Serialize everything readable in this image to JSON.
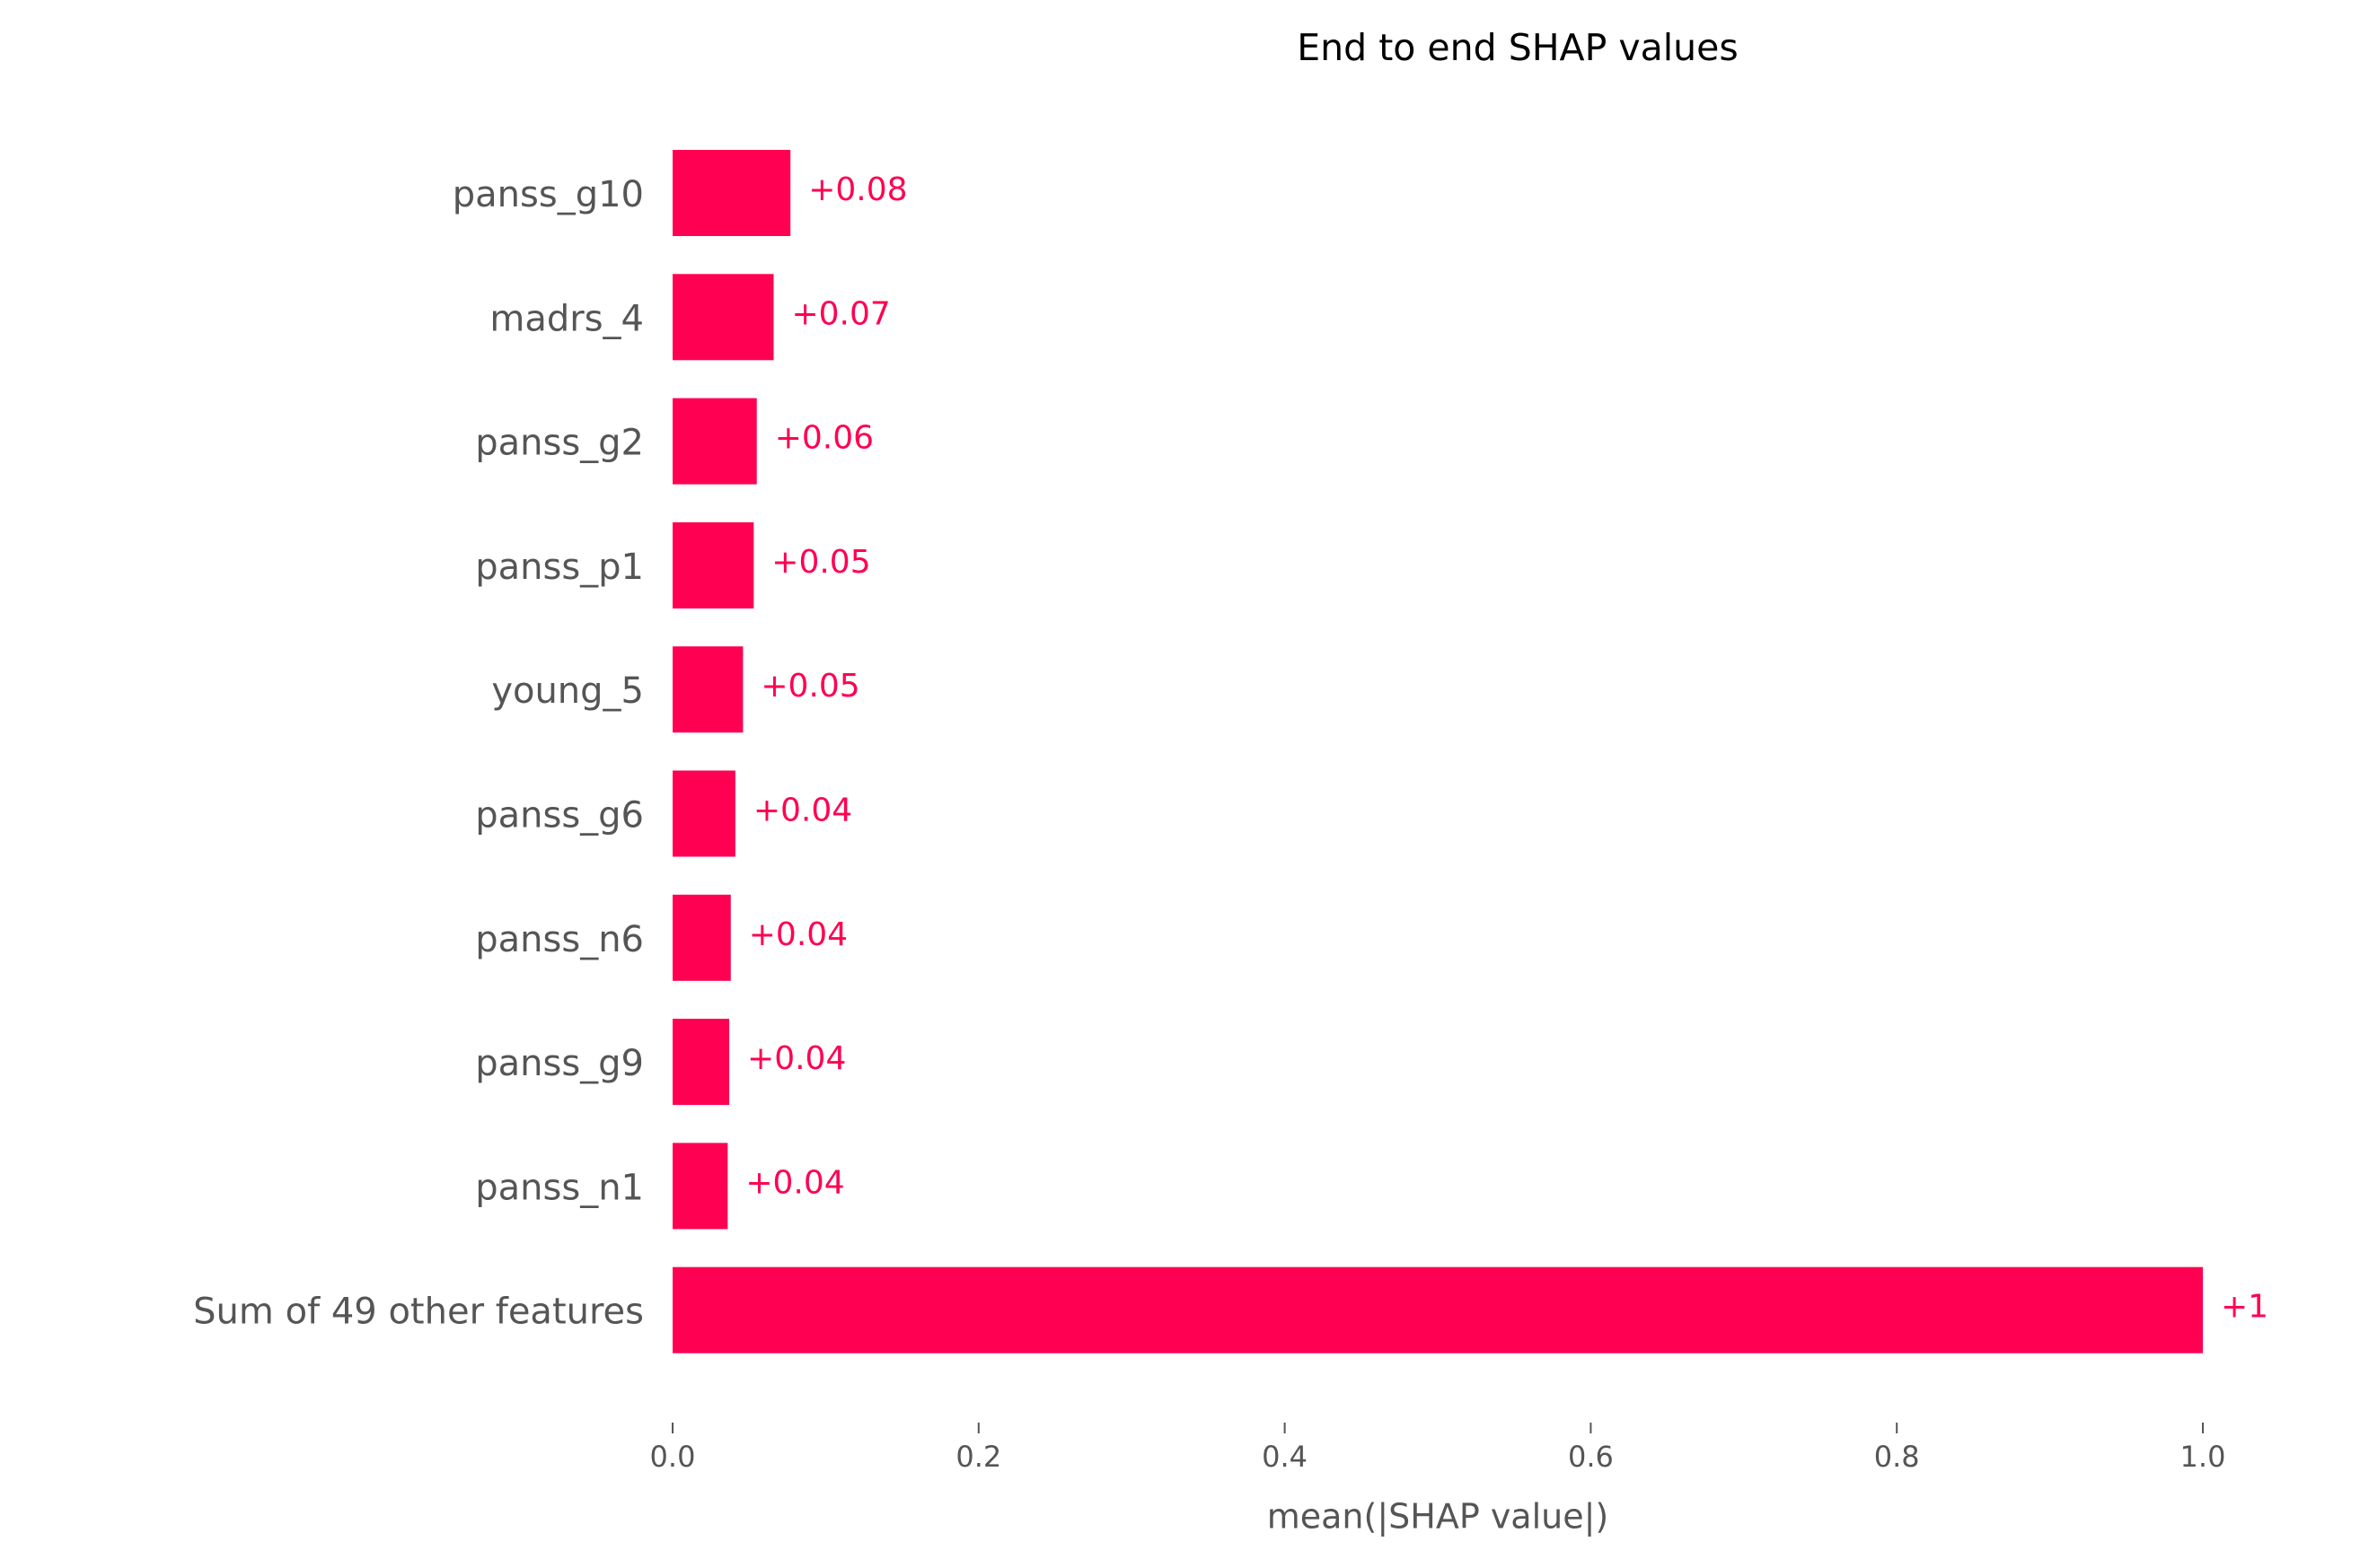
{
  "chart_data": {
    "type": "barh",
    "title": "End to end SHAP values",
    "categories": [
      "panss_g10",
      "madrs_4",
      "panss_g2",
      "panss_p1",
      "young_5",
      "panss_g6",
      "panss_n6",
      "panss_g9",
      "panss_n1",
      "Sum of 49 other features"
    ],
    "values": [
      0.077,
      0.066,
      0.055,
      0.053,
      0.046,
      0.041,
      0.038,
      0.037,
      0.036,
      1.0
    ],
    "value_labels": [
      "+0.08",
      "+0.07",
      "+0.06",
      "+0.05",
      "+0.05",
      "+0.04",
      "+0.04",
      "+0.04",
      "+0.04",
      "+1"
    ],
    "color": "#ff0052",
    "xlabel": "mean(|SHAP value|)",
    "xlim": [
      0,
      1.0
    ],
    "xticks": [
      {
        "value": 0,
        "label": "0.0"
      },
      0.2,
      0.4,
      0.6,
      0.8,
      {
        "value": 1.0,
        "label": "1.0"
      }
    ]
  }
}
